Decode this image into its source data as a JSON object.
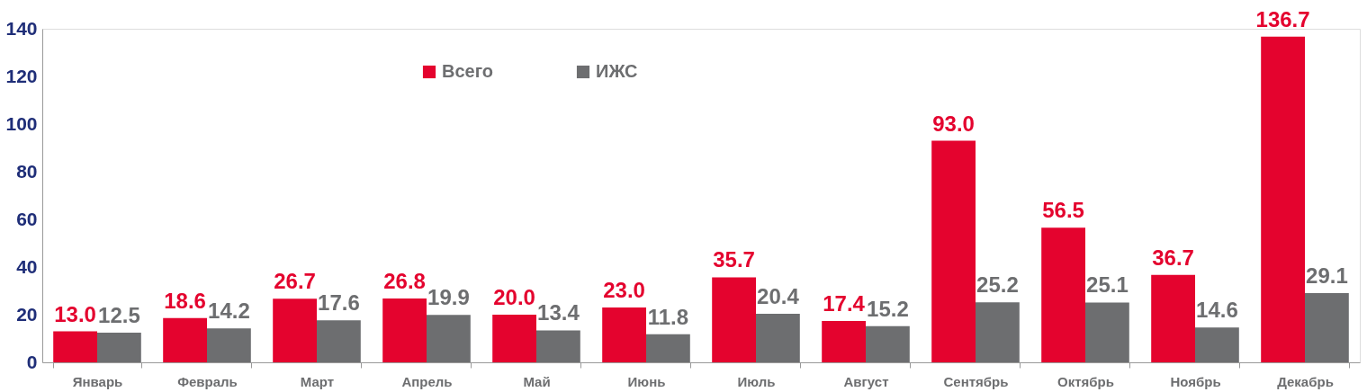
{
  "chart_data": {
    "type": "bar",
    "categories": [
      "Январь",
      "Февраль",
      "Март",
      "Апрель",
      "Май",
      "Июнь",
      "Июль",
      "Август",
      "Сентябрь",
      "Октябрь",
      "Ноябрь",
      "Декабрь"
    ],
    "series": [
      {
        "name": "Всего",
        "color": "#e4032e",
        "values": [
          13.0,
          18.6,
          26.7,
          26.8,
          20.0,
          23.0,
          35.7,
          17.4,
          93.0,
          56.5,
          36.7,
          136.7
        ],
        "value_labels": [
          "13.0",
          "18.6",
          "26.7",
          "26.8",
          "20.0",
          "23.0",
          "35.7",
          "17.4",
          "93.0",
          "56.5",
          "36.7",
          "136.7"
        ]
      },
      {
        "name": "ИЖС",
        "color": "#6d6e70",
        "values": [
          12.5,
          14.2,
          17.6,
          19.9,
          13.4,
          11.8,
          20.4,
          15.2,
          25.2,
          25.1,
          14.6,
          29.1
        ],
        "value_labels": [
          "12.5",
          "14.2",
          "17.6",
          "19.9",
          "13.4",
          "11.8",
          "20.4",
          "15.2",
          "25.2",
          "25.1",
          "14.6",
          "29.1"
        ]
      }
    ],
    "ylim": [
      0,
      140
    ],
    "yticks": [
      0,
      20,
      40,
      60,
      80,
      100,
      120,
      140
    ],
    "grid": false,
    "legend": "top"
  }
}
